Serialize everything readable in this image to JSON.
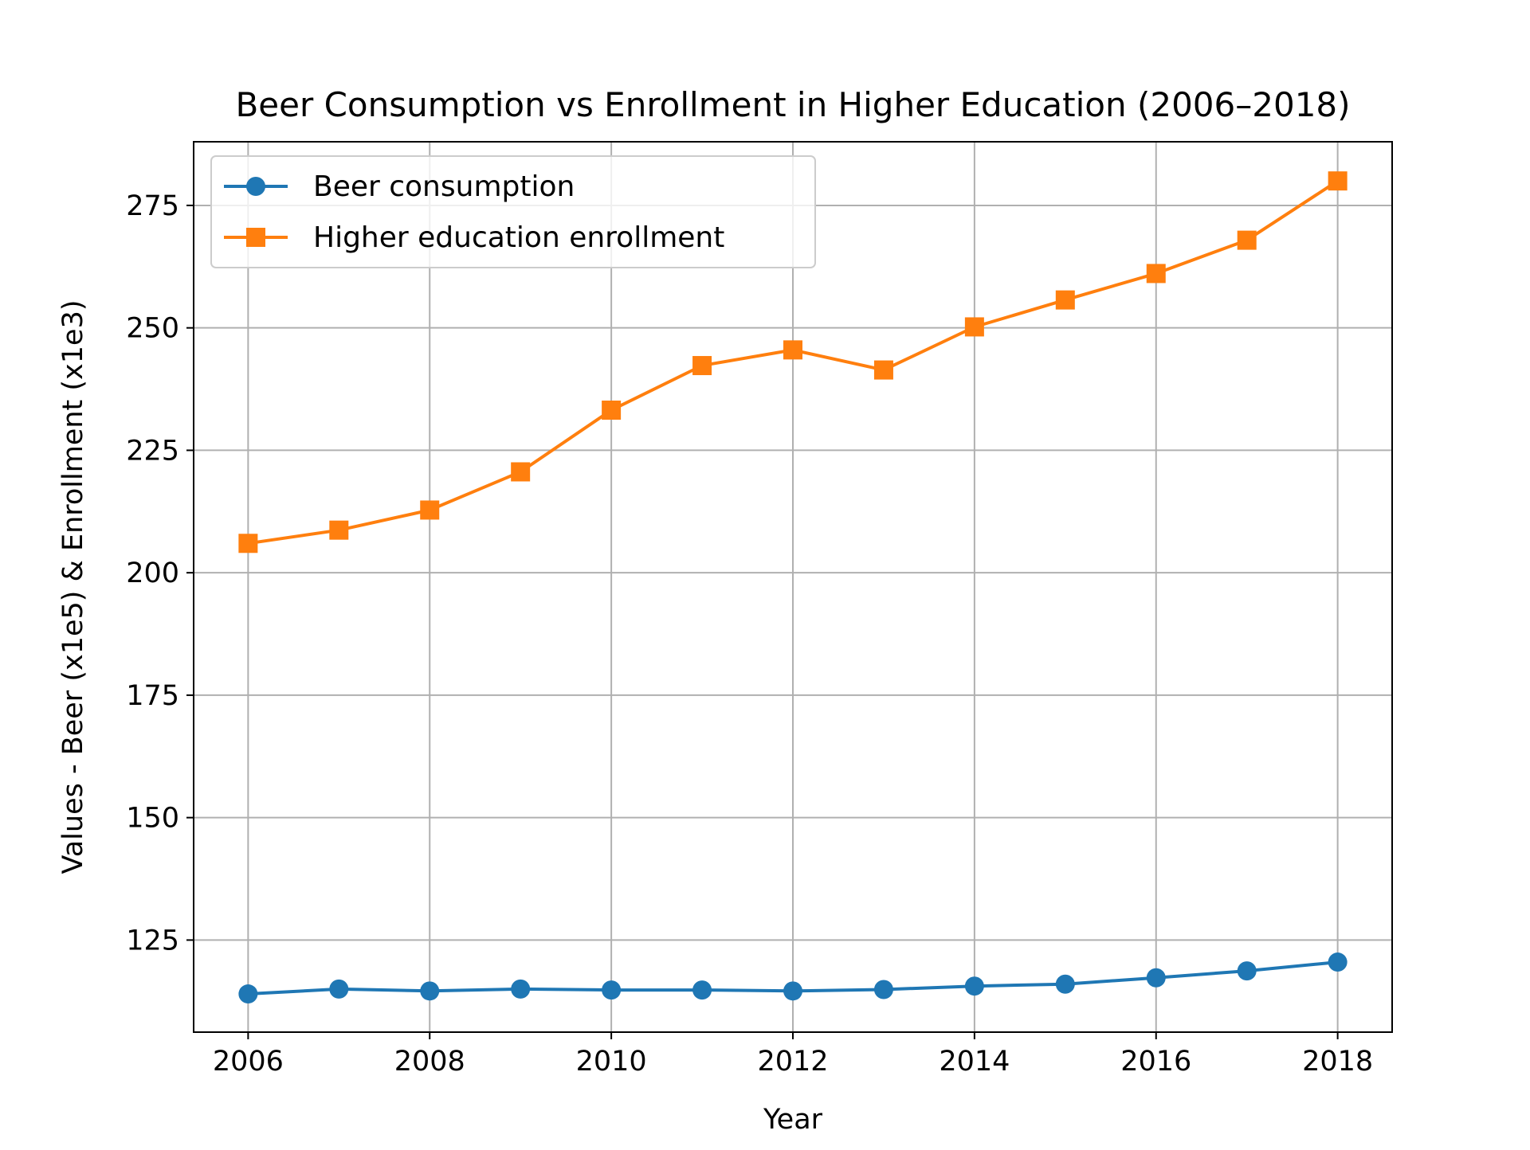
{
  "chart_data": {
    "type": "line",
    "title": "Beer Consumption vs Enrollment in Higher Education (2006–2018)",
    "xlabel": "Year",
    "ylabel": "Values - Beer (x1e5) & Enrollment (x1e3)",
    "x": [
      2006,
      2007,
      2008,
      2009,
      2010,
      2011,
      2012,
      2013,
      2014,
      2015,
      2016,
      2017,
      2018
    ],
    "xticks": [
      "2006",
      "2008",
      "2010",
      "2012",
      "2014",
      "2016",
      "2018"
    ],
    "yticks": [
      "125",
      "150",
      "175",
      "200",
      "225",
      "250",
      "275"
    ],
    "xlim": [
      2005.4,
      2018.6
    ],
    "ylim": [
      106.2,
      288.0
    ],
    "grid": true,
    "legend_position": "top-left",
    "series": [
      {
        "name": "Beer consumption",
        "color": "#1f77b4",
        "marker": "circle",
        "values": [
          114.0,
          115.0,
          114.6,
          115.0,
          114.8,
          114.8,
          114.6,
          114.9,
          115.6,
          116.0,
          117.3,
          118.7,
          120.5
        ]
      },
      {
        "name": "Higher education enrollment",
        "color": "#ff7f0e",
        "marker": "square",
        "values": [
          206.0,
          208.7,
          212.8,
          220.6,
          233.2,
          242.3,
          245.5,
          241.4,
          250.2,
          255.7,
          261.1,
          267.9,
          280.0
        ]
      }
    ]
  }
}
